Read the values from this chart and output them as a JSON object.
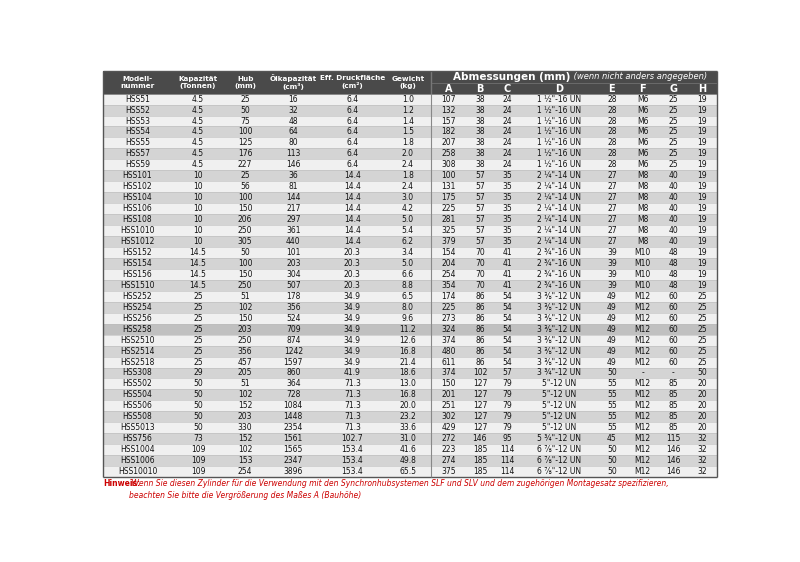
{
  "headers_left": [
    "Modell-\nnummer",
    "Kapazität\n(Tonnen)",
    "Hub\n(mm)",
    "Ölkapazität\n(cm³)",
    "Eff. Druckfläche\n(cm²)",
    "Gewicht\n(kg)"
  ],
  "headers_right_main": "Abmessungen (mm)",
  "headers_right_sub": " (wenn nicht anders angegeben)",
  "headers_right": [
    "A",
    "B",
    "C",
    "D",
    "E",
    "F",
    "G",
    "H"
  ],
  "rows": [
    [
      "HSS51",
      "4.5",
      "25",
      "16",
      "6.4",
      "1.0",
      "107",
      "38",
      "24",
      "1 ½\"-16 UN",
      "28",
      "M6",
      "25",
      "19"
    ],
    [
      "HSS52",
      "4.5",
      "50",
      "32",
      "6.4",
      "1.2",
      "132",
      "38",
      "24",
      "1 ½\"-16 UN",
      "28",
      "M6",
      "25",
      "19"
    ],
    [
      "HSS53",
      "4.5",
      "75",
      "48",
      "6.4",
      "1.4",
      "157",
      "38",
      "24",
      "1 ½\"-16 UN",
      "28",
      "M6",
      "25",
      "19"
    ],
    [
      "HSS54",
      "4.5",
      "100",
      "64",
      "6.4",
      "1.5",
      "182",
      "38",
      "24",
      "1 ½\"-16 UN",
      "28",
      "M6",
      "25",
      "19"
    ],
    [
      "HSS55",
      "4.5",
      "125",
      "80",
      "6.4",
      "1.8",
      "207",
      "38",
      "24",
      "1 ½\"-16 UN",
      "28",
      "M6",
      "25",
      "19"
    ],
    [
      "HSS57",
      "4.5",
      "176",
      "113",
      "6.4",
      "2.0",
      "258",
      "38",
      "24",
      "1 ½\"-16 UN",
      "28",
      "M6",
      "25",
      "19"
    ],
    [
      "HSS59",
      "4.5",
      "227",
      "146",
      "6.4",
      "2.4",
      "308",
      "38",
      "24",
      "1 ½\"-16 UN",
      "28",
      "M6",
      "25",
      "19"
    ],
    [
      "HSS101",
      "10",
      "25",
      "36",
      "14.4",
      "1.8",
      "100",
      "57",
      "35",
      "2 ¼\"-14 UN",
      "27",
      "M8",
      "40",
      "19"
    ],
    [
      "HSS102",
      "10",
      "56",
      "81",
      "14.4",
      "2.4",
      "131",
      "57",
      "35",
      "2 ¼\"-14 UN",
      "27",
      "M8",
      "40",
      "19"
    ],
    [
      "HSS104",
      "10",
      "100",
      "144",
      "14.4",
      "3.0",
      "175",
      "57",
      "35",
      "2 ¼\"-14 UN",
      "27",
      "M8",
      "40",
      "19"
    ],
    [
      "HSS106",
      "10",
      "150",
      "217",
      "14.4",
      "4.2",
      "225",
      "57",
      "35",
      "2 ¼\"-14 UN",
      "27",
      "M8",
      "40",
      "19"
    ],
    [
      "HSS108",
      "10",
      "206",
      "297",
      "14.4",
      "5.0",
      "281",
      "57",
      "35",
      "2 ¼\"-14 UN",
      "27",
      "M8",
      "40",
      "19"
    ],
    [
      "HSS1010",
      "10",
      "250",
      "361",
      "14.4",
      "5.4",
      "325",
      "57",
      "35",
      "2 ¼\"-14 UN",
      "27",
      "M8",
      "40",
      "19"
    ],
    [
      "HSS1012",
      "10",
      "305",
      "440",
      "14.4",
      "6.2",
      "379",
      "57",
      "35",
      "2 ¼\"-14 UN",
      "27",
      "M8",
      "40",
      "19"
    ],
    [
      "HSS152",
      "14.5",
      "50",
      "101",
      "20.3",
      "3.4",
      "154",
      "70",
      "41",
      "2 ¾\"-16 UN",
      "39",
      "M10",
      "48",
      "19"
    ],
    [
      "HSS154",
      "14.5",
      "100",
      "203",
      "20.3",
      "5.0",
      "204",
      "70",
      "41",
      "2 ¾\"-16 UN",
      "39",
      "M10",
      "48",
      "19"
    ],
    [
      "HSS156",
      "14.5",
      "150",
      "304",
      "20.3",
      "6.6",
      "254",
      "70",
      "41",
      "2 ¾\"-16 UN",
      "39",
      "M10",
      "48",
      "19"
    ],
    [
      "HSS1510",
      "14.5",
      "250",
      "507",
      "20.3",
      "8.8",
      "354",
      "70",
      "41",
      "2 ¾\"-16 UN",
      "39",
      "M10",
      "48",
      "19"
    ],
    [
      "HSS252",
      "25",
      "51",
      "178",
      "34.9",
      "6.5",
      "174",
      "86",
      "54",
      "3 ⅜\"-12 UN",
      "49",
      "M12",
      "60",
      "25"
    ],
    [
      "HSS254",
      "25",
      "102",
      "356",
      "34.9",
      "8.0",
      "225",
      "86",
      "54",
      "3 ⅜\"-12 UN",
      "49",
      "M12",
      "60",
      "25"
    ],
    [
      "HSS256",
      "25",
      "150",
      "524",
      "34.9",
      "9.6",
      "273",
      "86",
      "54",
      "3 ⅜\"-12 UN",
      "49",
      "M12",
      "60",
      "25"
    ],
    [
      "HSS258",
      "25",
      "203",
      "709",
      "34.9",
      "11.2",
      "324",
      "86",
      "54",
      "3 ⅜\"-12 UN",
      "49",
      "M12",
      "60",
      "25"
    ],
    [
      "HSS2510",
      "25",
      "250",
      "874",
      "34.9",
      "12.6",
      "374",
      "86",
      "54",
      "3 ⅜\"-12 UN",
      "49",
      "M12",
      "60",
      "25"
    ],
    [
      "HSS2514",
      "25",
      "356",
      "1242",
      "34.9",
      "16.8",
      "480",
      "86",
      "54",
      "3 ⅜\"-12 UN",
      "49",
      "M12",
      "60",
      "25"
    ],
    [
      "HSS2518",
      "25",
      "457",
      "1597",
      "34.9",
      "21.4",
      "611",
      "86",
      "54",
      "3 ⅜\"-12 UN",
      "49",
      "M12",
      "60",
      "25"
    ],
    [
      "HSS308",
      "29",
      "205",
      "860",
      "41.9",
      "18.6",
      "374",
      "102",
      "57",
      "3 ¾\"-12 UN",
      "50",
      "-",
      "-",
      "50"
    ],
    [
      "HSS502",
      "50",
      "51",
      "364",
      "71.3",
      "13.0",
      "150",
      "127",
      "79",
      "5\"-12 UN",
      "55",
      "M12",
      "85",
      "20"
    ],
    [
      "HSS504",
      "50",
      "102",
      "728",
      "71.3",
      "16.8",
      "201",
      "127",
      "79",
      "5\"-12 UN",
      "55",
      "M12",
      "85",
      "20"
    ],
    [
      "HSS506",
      "50",
      "152",
      "1084",
      "71.3",
      "20.0",
      "251",
      "127",
      "79",
      "5\"-12 UN",
      "55",
      "M12",
      "85",
      "20"
    ],
    [
      "HSS508",
      "50",
      "203",
      "1448",
      "71.3",
      "23.2",
      "302",
      "127",
      "79",
      "5\"-12 UN",
      "55",
      "M12",
      "85",
      "20"
    ],
    [
      "HSS5013",
      "50",
      "330",
      "2354",
      "71.3",
      "33.6",
      "429",
      "127",
      "79",
      "5\"-12 UN",
      "55",
      "M12",
      "85",
      "20"
    ],
    [
      "HSS756",
      "73",
      "152",
      "1561",
      "102.7",
      "31.0",
      "272",
      "146",
      "95",
      "5 ¾\"-12 UN",
      "45",
      "M12",
      "115",
      "32"
    ],
    [
      "HSS1004",
      "109",
      "102",
      "1565",
      "153.4",
      "41.6",
      "223",
      "185",
      "114",
      "6 ⅞\"-12 UN",
      "50",
      "M12",
      "146",
      "32"
    ],
    [
      "HSS1006",
      "109",
      "153",
      "2347",
      "153.4",
      "49.8",
      "274",
      "185",
      "114",
      "6 ⅞\"-12 UN",
      "50",
      "M12",
      "146",
      "32"
    ],
    [
      "HSS10010",
      "109",
      "254",
      "3896",
      "153.4",
      "65.5",
      "375",
      "185",
      "114",
      "6 ⅞\"-12 UN",
      "50",
      "M12",
      "146",
      "32"
    ]
  ],
  "highlight_row": "HSS258",
  "note_bold": "Hinweis:",
  "note_italic": " Wenn Sie diesen Zylinder für die Verwendung mit den Synchronhubsystemen SLF und SLV und dem zugehörigen Montagesatz spezifizieren,\nbeachten Sie bitte die Vergrößerung des Maßes A (Bauhöhe)",
  "header_bg": "#4a4a4a",
  "row_odd_bg": "#f0f0f0",
  "row_even_bg": "#d4d4d4",
  "highlight_bg": "#c0c0c0",
  "col_props": [
    0.095,
    0.072,
    0.058,
    0.075,
    0.088,
    0.065,
    0.048,
    0.038,
    0.038,
    0.105,
    0.04,
    0.045,
    0.04,
    0.04
  ]
}
